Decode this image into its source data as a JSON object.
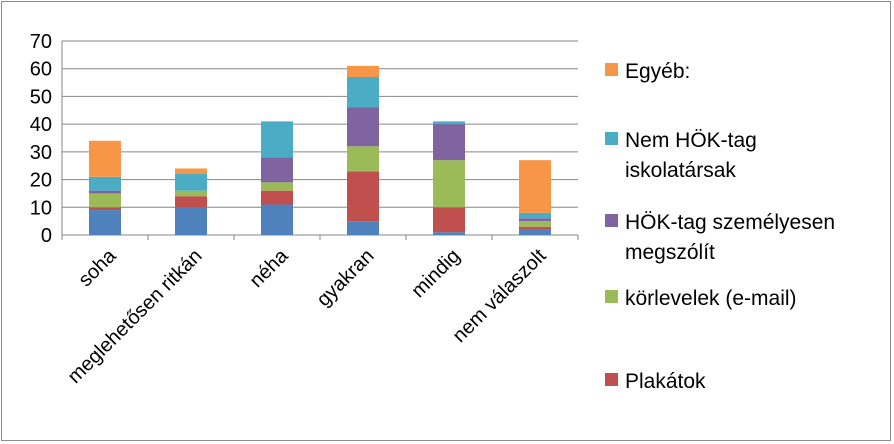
{
  "chart_data": {
    "type": "bar",
    "stacked": true,
    "categories": [
      "soha",
      "meglehetősen ritkán",
      "néha",
      "gyakran",
      "mindig",
      "nem válaszolt"
    ],
    "series": [
      {
        "name": "",
        "color": "#4f81bd",
        "values": [
          9,
          10,
          11,
          5,
          1,
          2
        ]
      },
      {
        "name": "Plakátok",
        "color": "#c0504d",
        "values": [
          1,
          4,
          5,
          18,
          9,
          1
        ]
      },
      {
        "name": "körlevelek (e-mail)",
        "color": "#9bbb59",
        "values": [
          5,
          2,
          3,
          9,
          17,
          2
        ]
      },
      {
        "name": "HÖK-tag személyesen megszólít",
        "color": "#8064a2",
        "values": [
          1,
          0,
          9,
          14,
          13,
          1
        ]
      },
      {
        "name": "Nem HÖK-tag iskolatársak",
        "color": "#4bacc6",
        "values": [
          5,
          6,
          13,
          11,
          1,
          2
        ]
      },
      {
        "name": "Egyéb:",
        "color": "#f79646",
        "values": [
          13,
          2,
          0,
          4,
          0,
          19
        ]
      }
    ],
    "ylim": [
      0,
      70
    ],
    "yticks": [
      0,
      10,
      20,
      30,
      40,
      50,
      60,
      70
    ],
    "grid": true,
    "legend_position": "right",
    "legend_entries_visible": [
      {
        "lines": [
          "Egyéb:"
        ],
        "color": "#f79646"
      },
      {
        "lines": [
          "Nem HÖK-tag",
          "iskolatársak"
        ],
        "color": "#4bacc6"
      },
      {
        "lines": [
          "HÖK-tag személyesen",
          "megszólít"
        ],
        "color": "#8064a2"
      },
      {
        "lines": [
          "körlevelek (e-mail)"
        ],
        "color": "#9bbb59"
      },
      {
        "lines": [
          "Plakátok"
        ],
        "color": "#c0504d"
      }
    ]
  }
}
